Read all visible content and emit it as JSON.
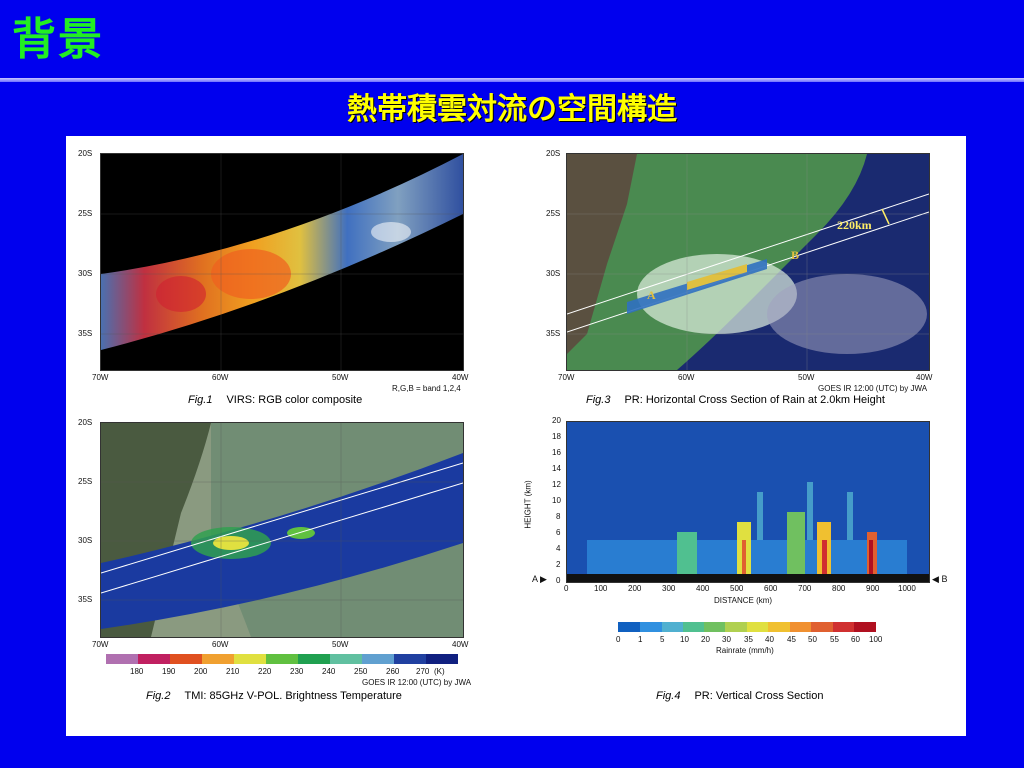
{
  "slide": {
    "heading": "背景",
    "subtitle": "熱帯積雲対流の空間構造"
  },
  "colors": {
    "background": "#0000ee",
    "heading": "#22ee22",
    "subtitle": "#ffff00",
    "panel": "#ffffff"
  },
  "figures": {
    "fig1": {
      "number": "Fig.1",
      "caption": "VIRS: RGB color composite",
      "note": "R,G,B = band 1,2,4",
      "lat_ticks": [
        "20S",
        "25S",
        "30S",
        "35S"
      ],
      "lon_ticks": [
        "70W",
        "60W",
        "50W",
        "40W"
      ]
    },
    "fig2": {
      "number": "Fig.2",
      "caption": "TMI: 85GHz V-POL. Brightness Temperature",
      "credit": "GOES IR 12:00 (UTC) by JWA",
      "lat_ticks": [
        "20S",
        "25S",
        "30S",
        "35S"
      ],
      "lon_ticks": [
        "70W",
        "60W",
        "50W",
        "40W"
      ],
      "colorbar_ticks": [
        "180",
        "190",
        "200",
        "210",
        "220",
        "230",
        "240",
        "250",
        "260",
        "270"
      ],
      "colorbar_unit": "(K)",
      "colorbar_colors": [
        "#b070b0",
        "#c02060",
        "#e05020",
        "#f0a030",
        "#e0e040",
        "#60c040",
        "#20a050",
        "#60c0a0",
        "#60a0d0",
        "#2040a0",
        "#102080"
      ]
    },
    "fig3": {
      "number": "Fig.3",
      "caption": "PR: Horizontal Cross Section of Rain at 2.0km Height",
      "credit": "GOES IR 12:00 (UTC) by JWA",
      "lat_ticks": [
        "20S",
        "25S",
        "30S",
        "35S"
      ],
      "lon_ticks": [
        "70W",
        "60W",
        "50W",
        "40W"
      ],
      "swath_label": "220km",
      "point_a": "A",
      "point_b": "B"
    },
    "fig4": {
      "number": "Fig.4",
      "caption": "PR: Vertical Cross Section",
      "y_title": "HEIGHT (km)",
      "x_title": "DISTANCE (km)",
      "y_ticks": [
        "20",
        "18",
        "16",
        "14",
        "12",
        "10",
        "8",
        "6",
        "4",
        "2",
        "0"
      ],
      "x_ticks": [
        "0",
        "100",
        "200",
        "300",
        "400",
        "500",
        "600",
        "700",
        "800",
        "900",
        "1000"
      ],
      "marker_a": "A",
      "marker_b": "B",
      "colorbar_ticks": [
        "0",
        "1",
        "5",
        "10",
        "20",
        "30",
        "35",
        "40",
        "45",
        "50",
        "55",
        "60",
        "100"
      ],
      "colorbar_title": "Rainrate (mm/h)",
      "colorbar_colors": [
        "#1060c0",
        "#3090e0",
        "#50b0d0",
        "#50c090",
        "#70c060",
        "#b0d050",
        "#e0e040",
        "#f0c030",
        "#f09030",
        "#e06030",
        "#d03030",
        "#b01020"
      ]
    }
  }
}
